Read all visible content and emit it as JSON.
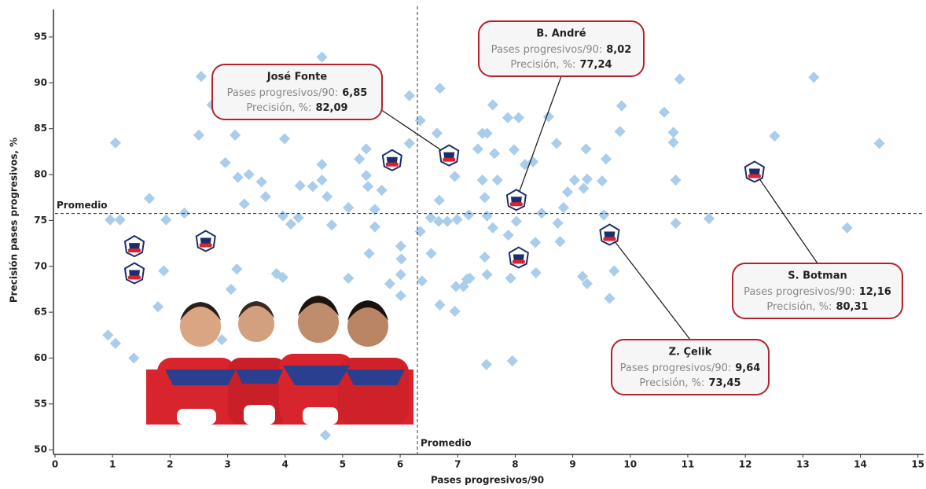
{
  "chart_data": {
    "type": "scatter",
    "x_label": "Pases progresivos/90",
    "y_label": "Precisión pases progresivos, %",
    "xlim": [
      0,
      15.1
    ],
    "ylim": [
      49.5,
      98
    ],
    "xticks": [
      0,
      1,
      2,
      3,
      4,
      5,
      6,
      7,
      8,
      9,
      10,
      11,
      12,
      13,
      14,
      15
    ],
    "yticks": [
      50,
      55,
      60,
      65,
      70,
      75,
      80,
      85,
      90,
      95
    ],
    "color": "#a9cdea",
    "x_avg": 6.3,
    "y_avg": 75.75,
    "avg_label": "Promedio",
    "x": [
      1.05,
      0.96,
      1.13,
      0.92,
      1.05,
      1.37,
      1.64,
      1.93,
      1.89,
      1.79,
      2.25,
      2.5,
      2.54,
      2.73,
      2.96,
      3.13,
      3.18,
      3.29,
      3.37,
      3.37,
      3.59,
      3.66,
      3.16,
      3.06,
      2.9,
      2.7,
      3.99,
      3.96,
      4.1,
      4.26,
      4.23,
      4.48,
      4.64,
      4.64,
      4.64,
      4.73,
      4.81,
      3.85,
      3.96,
      5.1,
      5.1,
      5.29,
      5.41,
      5.41,
      5.44,
      5.46,
      5.56,
      5.56,
      5.68,
      5.82,
      6.01,
      6.01,
      6.01,
      6.02,
      6.16,
      6.16,
      6.35,
      6.35,
      6.38,
      6.53,
      6.54,
      6.64,
      6.68,
      6.69,
      6.67,
      6.82,
      6.69,
      6.95,
      6.99,
      6.95,
      6.97,
      7.1,
      7.16,
      7.21,
      7.19,
      7.51,
      7.35,
      7.43,
      7.51,
      7.43,
      7.47,
      7.47,
      7.51,
      7.61,
      7.61,
      7.64,
      7.5,
      7.69,
      7.87,
      7.88,
      7.92,
      7.95,
      8.06,
      7.98,
      8.02,
      8.17,
      8.31,
      8.35,
      8.36,
      8.46,
      8.58,
      8.72,
      8.74,
      8.78,
      8.84,
      8.91,
      9.03,
      9.19,
      9.23,
      9.25,
      9.25,
      9.17,
      9.51,
      9.58,
      9.54,
      9.64,
      9.72,
      9.85,
      9.82,
      10.59,
      10.75,
      10.75,
      10.79,
      10.79,
      10.86,
      11.37,
      12.51,
      13.19,
      13.77,
      14.33,
      4.7
    ],
    "y": [
      83.45,
      75.07,
      75.07,
      62.5,
      61.6,
      60.0,
      77.4,
      75.07,
      69.5,
      65.6,
      75.8,
      84.3,
      90.7,
      87.6,
      81.3,
      84.3,
      79.7,
      76.8,
      80.0,
      90.5,
      79.2,
      77.6,
      69.7,
      67.5,
      62.0,
      64.4,
      83.9,
      75.5,
      74.6,
      78.8,
      75.3,
      78.7,
      79.4,
      81.1,
      92.8,
      77.6,
      74.5,
      69.2,
      68.8,
      76.4,
      68.7,
      81.7,
      82.8,
      79.9,
      78.7,
      71.4,
      76.2,
      74.3,
      78.3,
      68.1,
      72.2,
      69.1,
      66.8,
      70.8,
      88.6,
      83.4,
      85.9,
      73.8,
      68.4,
      75.3,
      71.4,
      84.5,
      77.2,
      89.4,
      74.9,
      74.9,
      65.8,
      79.8,
      75.1,
      65.1,
      67.8,
      67.8,
      68.6,
      68.7,
      75.6,
      75.5,
      82.8,
      84.5,
      84.5,
      79.4,
      77.5,
      71.0,
      69.1,
      87.6,
      74.2,
      82.3,
      59.3,
      79.4,
      86.2,
      73.4,
      68.7,
      59.7,
      86.2,
      82.7,
      74.9,
      81.1,
      81.4,
      72.6,
      69.3,
      75.8,
      86.3,
      83.4,
      74.7,
      72.7,
      76.4,
      78.1,
      79.4,
      78.5,
      82.8,
      79.5,
      68.1,
      68.9,
      79.3,
      81.7,
      75.6,
      66.5,
      69.5,
      87.5,
      84.7,
      86.8,
      84.6,
      83.5,
      79.4,
      74.7,
      90.4,
      75.2,
      84.2,
      90.6,
      74.2,
      83.4,
      51.6
    ],
    "highlight_x": [
      5.86,
      1.38,
      1.38,
      2.62,
      8.06
    ],
    "highlight_y": [
      81.57,
      72.2,
      69.25,
      72.76,
      70.96
    ],
    "x_field_label": "Pases progresivos/90:",
    "y_field_label": "Precisión, %:",
    "annotations": [
      {
        "name": "José Fonte",
        "x": 6.85,
        "y": 82.09,
        "x_label": "6,85",
        "y_label": "82,09"
      },
      {
        "name": "B. André",
        "x": 8.02,
        "y": 77.24,
        "x_label": "8,02",
        "y_label": "77,24"
      },
      {
        "name": "S. Botman",
        "x": 12.16,
        "y": 80.31,
        "x_label": "12,16",
        "y_label": "80,31"
      },
      {
        "name": "Z. Çelik",
        "x": 9.64,
        "y": 73.45,
        "x_label": "9,64",
        "y_label": "73,45"
      }
    ]
  }
}
